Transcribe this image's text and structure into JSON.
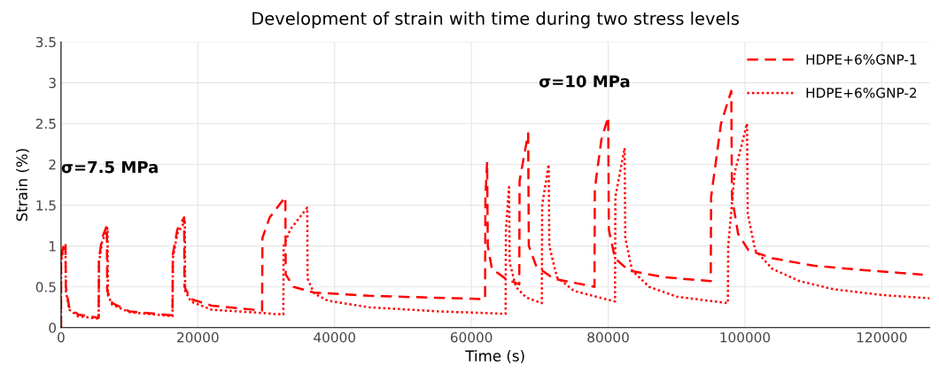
{
  "chart_data": {
    "type": "line",
    "title": "Development of strain with time during two stress levels",
    "xlabel": "Time (s)",
    "ylabel": "Strain (%)",
    "xlim": [
      0,
      127000
    ],
    "xticks": [
      0,
      20000,
      40000,
      60000,
      80000,
      100000,
      120000
    ],
    "ylim": [
      0,
      3.5
    ],
    "yticks": [
      0,
      0.5,
      1,
      1.5,
      2,
      2.5,
      3,
      3.5
    ],
    "grid": true,
    "legend": "top right",
    "annotations": [
      "σ=7.5 MPa",
      "σ=10 MPa"
    ],
    "series": [
      {
        "name": "HDPE+6%GNP-1",
        "color": "#ff0000",
        "line_style": "dashed",
        "x": [
          0,
          0,
          300,
          650,
          700,
          1200,
          2500,
          5500,
          5550,
          6000,
          6700,
          6750,
          7500,
          10000,
          16300,
          16350,
          17000,
          18000,
          18050,
          19000,
          22000,
          29400,
          29450,
          30500,
          32800,
          32850,
          34000,
          37000,
          45000,
          62000,
          62050,
          62300,
          62400,
          63000,
          65000,
          67000,
          67050,
          68300,
          68400,
          69500,
          72000,
          78000,
          78050,
          79000,
          80000,
          80100,
          81000,
          83000,
          88000,
          95000,
          95050,
          96500,
          98000,
          98100,
          99000,
          100500,
          104000,
          110000,
          118000,
          126000
        ],
        "values": [
          0,
          0.85,
          0.98,
          1.05,
          0.5,
          0.25,
          0.16,
          0.12,
          0.85,
          1.1,
          1.25,
          0.45,
          0.3,
          0.2,
          0.15,
          0.9,
          1.2,
          1.35,
          0.5,
          0.35,
          0.27,
          0.21,
          1.1,
          1.35,
          1.6,
          0.65,
          0.5,
          0.43,
          0.39,
          0.35,
          1.6,
          2.03,
          1.0,
          0.72,
          0.6,
          0.53,
          1.8,
          2.38,
          1.0,
          0.75,
          0.6,
          0.5,
          1.7,
          2.3,
          2.58,
          1.2,
          0.85,
          0.7,
          0.62,
          0.57,
          1.6,
          2.5,
          2.9,
          1.6,
          1.15,
          0.95,
          0.85,
          0.76,
          0.7,
          0.65
        ]
      },
      {
        "name": "HDPE+6%GNP-2",
        "color": "#ff0000",
        "line_style": "dotted",
        "x": [
          0,
          0,
          300,
          650,
          700,
          1200,
          2500,
          5500,
          5550,
          6000,
          6800,
          6850,
          7500,
          10000,
          16300,
          16350,
          17000,
          18100,
          18150,
          19000,
          22000,
          29400,
          32500,
          32550,
          33500,
          36000,
          36050,
          37000,
          39000,
          45000,
          55000,
          65000,
          65050,
          65500,
          65600,
          66500,
          68000,
          70300,
          70350,
          71300,
          71400,
          72500,
          75000,
          81000,
          81050,
          82400,
          82500,
          83500,
          86000,
          90000,
          97500,
          97550,
          98500,
          100300,
          100400,
          101500,
          104000,
          108000,
          113000,
          120000,
          127000
        ],
        "values": [
          0,
          0.8,
          0.95,
          1.0,
          0.45,
          0.22,
          0.14,
          0.11,
          0.8,
          1.05,
          1.22,
          0.4,
          0.28,
          0.19,
          0.14,
          0.85,
          1.15,
          1.3,
          0.45,
          0.32,
          0.22,
          0.18,
          0.16,
          1.0,
          1.2,
          1.47,
          0.6,
          0.42,
          0.33,
          0.25,
          0.2,
          0.17,
          1.2,
          1.72,
          0.8,
          0.5,
          0.37,
          0.3,
          1.5,
          2.0,
          1.0,
          0.62,
          0.45,
          0.32,
          1.6,
          2.2,
          1.1,
          0.7,
          0.5,
          0.38,
          0.3,
          1.0,
          1.9,
          2.5,
          1.4,
          0.95,
          0.72,
          0.57,
          0.47,
          0.4,
          0.36
        ]
      }
    ]
  }
}
